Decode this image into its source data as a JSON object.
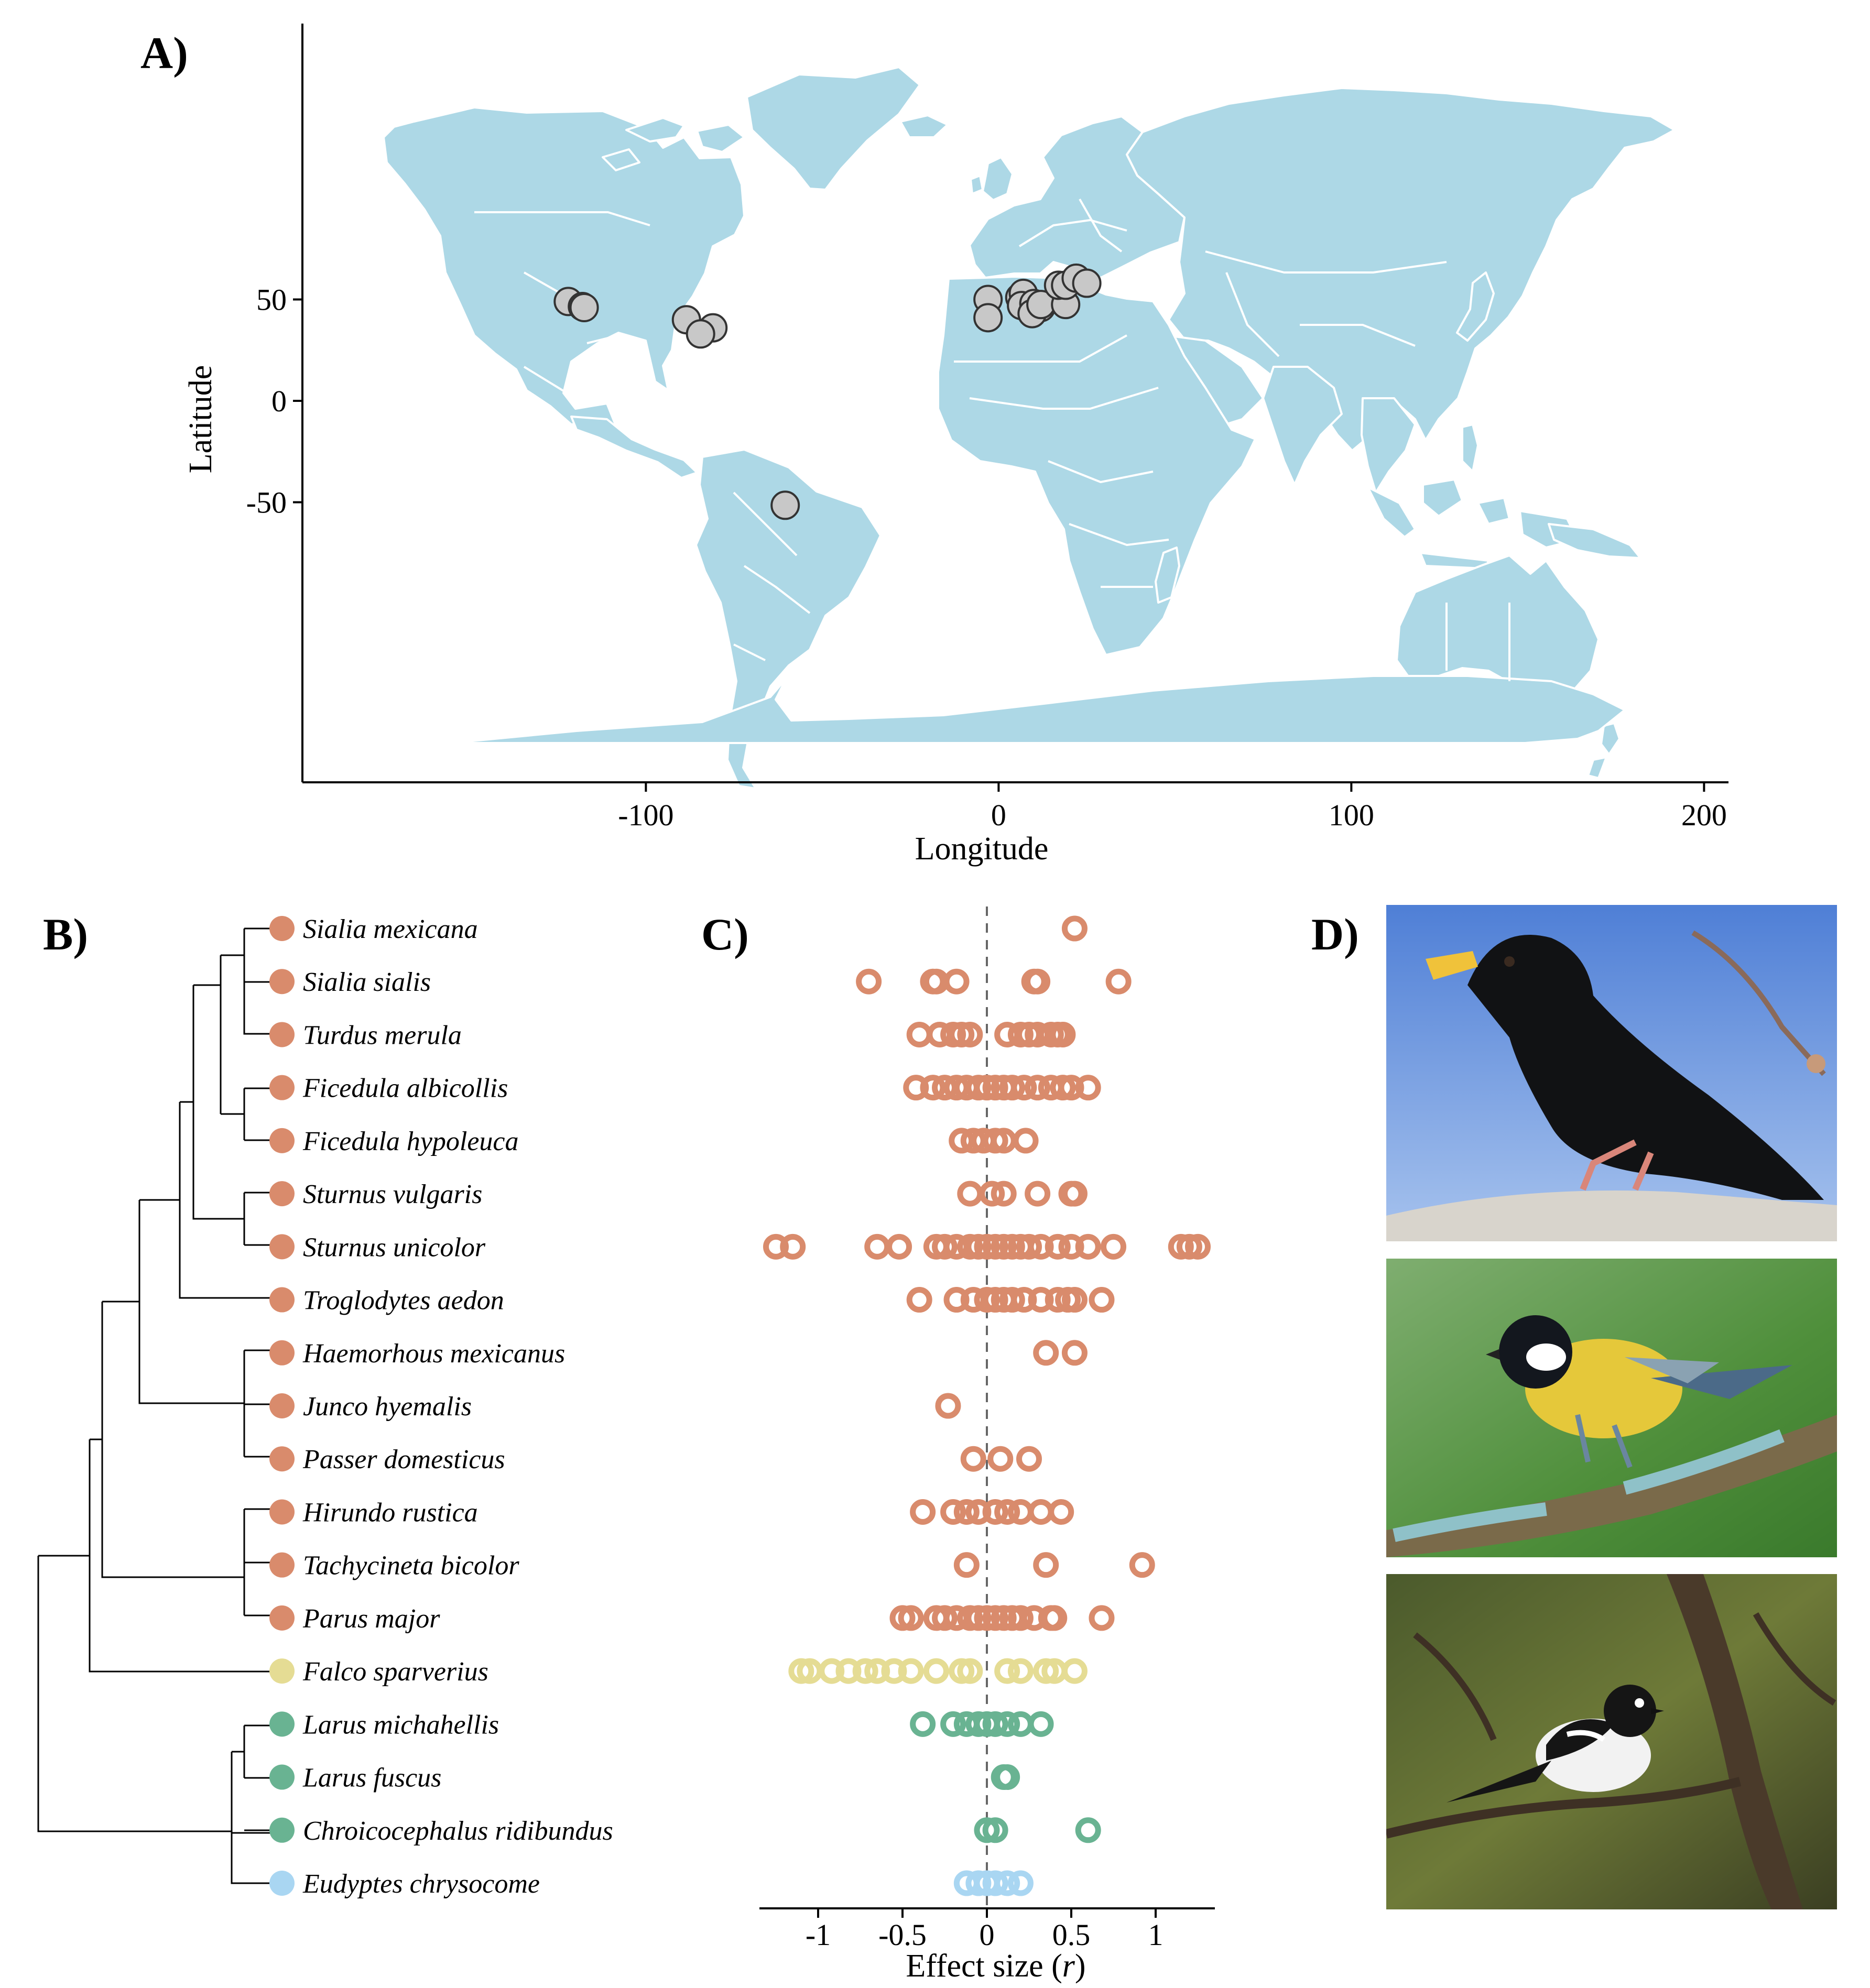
{
  "colors": {
    "land": "#add8e6",
    "border": "#ffffff",
    "site_point": "#c8c8c8",
    "passerine": "#d98b6c",
    "falcon": "#e5dc94",
    "gull": "#69b392",
    "penguin": "#a9d6f2"
  },
  "chart_data": [
    {
      "id": "A",
      "panel_label": "A)",
      "type": "scatter",
      "background": "world-map",
      "xlabel": "Longitude",
      "ylabel": "Latitude",
      "xticks": [
        -100,
        0,
        100,
        200
      ],
      "yticks": [
        -50,
        0,
        50
      ],
      "xlim": [
        -190,
        210
      ],
      "ylim": [
        -93,
        92
      ],
      "points": [
        {
          "lon": -122,
          "lat": 49
        },
        {
          "lon": -118,
          "lat": 46.5
        },
        {
          "lon": -117.5,
          "lat": 46
        },
        {
          "lon": -88.5,
          "lat": 40
        },
        {
          "lon": -81,
          "lat": 36
        },
        {
          "lon": -84.5,
          "lat": 33
        },
        {
          "lon": -60.5,
          "lat": -51.5
        },
        {
          "lon": -3,
          "lat": 50
        },
        {
          "lon": -3,
          "lat": 41
        },
        {
          "lon": 6,
          "lat": 51
        },
        {
          "lon": 7,
          "lat": 53
        },
        {
          "lon": 6.5,
          "lat": 47
        },
        {
          "lon": 10,
          "lat": 48
        },
        {
          "lon": 12,
          "lat": 46
        },
        {
          "lon": 9.5,
          "lat": 43
        },
        {
          "lon": 12,
          "lat": 47.5
        },
        {
          "lon": 19,
          "lat": 47.5
        },
        {
          "lon": 17,
          "lat": 57
        },
        {
          "lon": 19,
          "lat": 57
        },
        {
          "lon": 22,
          "lat": 60.5
        },
        {
          "lon": 25,
          "lat": 58
        }
      ]
    },
    {
      "id": "C",
      "panel_label": "C)",
      "type": "scatter",
      "xlabel_text": "Effect size (",
      "xlabel_symbol": "r",
      "xlabel_close": ")",
      "xticks": [
        -1,
        -0.5,
        0,
        0.5,
        1
      ],
      "xlim": [
        -1.35,
        1.35
      ],
      "reference_line": 0,
      "series": [
        {
          "name": "Sialia mexicana",
          "group": "passerine",
          "values": [
            0.52
          ]
        },
        {
          "name": "Sialia sialis",
          "group": "passerine",
          "values": [
            -0.7,
            -0.32,
            -0.3,
            -0.18,
            0.28,
            0.3,
            0.78
          ]
        },
        {
          "name": "Turdus merula",
          "group": "passerine",
          "values": [
            -0.4,
            -0.28,
            -0.2,
            -0.15,
            -0.1,
            0.12,
            0.2,
            0.25,
            0.3,
            0.38,
            0.42,
            0.45
          ]
        },
        {
          "name": "Ficedula albicollis",
          "group": "passerine",
          "values": [
            -0.42,
            -0.32,
            -0.25,
            -0.18,
            -0.12,
            -0.05,
            0.0,
            0.05,
            0.1,
            0.15,
            0.22,
            0.3,
            0.38,
            0.45,
            0.5,
            0.6
          ]
        },
        {
          "name": "Ficedula hypoleuca",
          "group": "passerine",
          "values": [
            -0.15,
            -0.08,
            -0.02,
            0.05,
            0.1,
            0.23
          ]
        },
        {
          "name": "Sturnus vulgaris",
          "group": "passerine",
          "values": [
            -0.1,
            0.03,
            0.1,
            0.3,
            0.5,
            0.52
          ]
        },
        {
          "name": "Sturnus unicolor",
          "group": "passerine",
          "values": [
            -1.25,
            -1.15,
            -0.65,
            -0.52,
            -0.3,
            -0.25,
            -0.18,
            -0.1,
            -0.05,
            0.0,
            0.05,
            0.1,
            0.15,
            0.2,
            0.25,
            0.32,
            0.42,
            0.5,
            0.6,
            0.75,
            1.15,
            1.2,
            1.25
          ]
        },
        {
          "name": "Troglodytes aedon",
          "group": "passerine",
          "values": [
            -0.4,
            -0.18,
            -0.08,
            0.0,
            0.05,
            0.1,
            0.15,
            0.22,
            0.32,
            0.42,
            0.48,
            0.52,
            0.68
          ]
        },
        {
          "name": "Haemorhous mexicanus",
          "group": "passerine",
          "values": [
            0.35,
            0.52
          ]
        },
        {
          "name": "Junco hyemalis",
          "group": "passerine",
          "values": [
            -0.23
          ]
        },
        {
          "name": "Passer domesticus",
          "group": "passerine",
          "values": [
            -0.08,
            0.08,
            0.25
          ]
        },
        {
          "name": "Hirundo rustica",
          "group": "passerine",
          "values": [
            -0.38,
            -0.2,
            -0.12,
            -0.05,
            0.05,
            0.12,
            0.2,
            0.32,
            0.44
          ]
        },
        {
          "name": "Tachycineta bicolor",
          "group": "passerine",
          "values": [
            -0.12,
            0.35,
            0.92
          ]
        },
        {
          "name": "Parus major",
          "group": "passerine",
          "values": [
            -0.5,
            -0.45,
            -0.3,
            -0.25,
            -0.18,
            -0.1,
            -0.05,
            0.0,
            0.05,
            0.1,
            0.15,
            0.2,
            0.28,
            0.38,
            0.4,
            0.68
          ]
        },
        {
          "name": "Falco sparverius",
          "group": "falcon",
          "values": [
            -1.1,
            -1.05,
            -0.92,
            -0.82,
            -0.72,
            -0.65,
            -0.55,
            -0.45,
            -0.3,
            -0.15,
            -0.1,
            0.12,
            0.2,
            0.35,
            0.4,
            0.52
          ]
        },
        {
          "name": "Larus michahellis",
          "group": "gull",
          "values": [
            -0.38,
            -0.2,
            -0.12,
            -0.05,
            0.0,
            0.05,
            0.12,
            0.2,
            0.32
          ]
        },
        {
          "name": "Larus fuscus",
          "group": "gull",
          "values": [
            0.1,
            0.12
          ]
        },
        {
          "name": "Chroicocephalus ridibundus",
          "group": "gull",
          "values": [
            0.0,
            0.05,
            0.6
          ]
        },
        {
          "name": "Eudyptes chrysocome",
          "group": "penguin",
          "values": [
            -0.12,
            -0.05,
            0.0,
            0.05,
            0.12,
            0.2
          ]
        }
      ]
    }
  ],
  "phylogeny": {
    "panel_label": "B)",
    "species": [
      "Sialia mexicana",
      "Sialia sialis",
      "Turdus merula",
      "Ficedula albicollis",
      "Ficedula hypoleuca",
      "Sturnus vulgaris",
      "Sturnus unicolor",
      "Troglodytes aedon",
      "Haemorhous mexicanus",
      "Junco hyemalis",
      "Passer domesticus",
      "Hirundo rustica",
      "Tachycineta bicolor",
      "Parus major",
      "Falco sparverius",
      "Larus michahellis",
      "Larus fuscus",
      "Chroicocephalus ridibundus",
      "Eudyptes chrysocome"
    ],
    "groups": [
      "passerine",
      "passerine",
      "passerine",
      "passerine",
      "passerine",
      "passerine",
      "passerine",
      "passerine",
      "passerine",
      "passerine",
      "passerine",
      "passerine",
      "passerine",
      "passerine",
      "falcon",
      "gull",
      "gull",
      "gull",
      "penguin"
    ]
  },
  "photos": {
    "panel_label": "D)",
    "items": [
      {
        "id": "starling-photo"
      },
      {
        "id": "great-tit-photo"
      },
      {
        "id": "flycatcher-photo"
      }
    ]
  }
}
